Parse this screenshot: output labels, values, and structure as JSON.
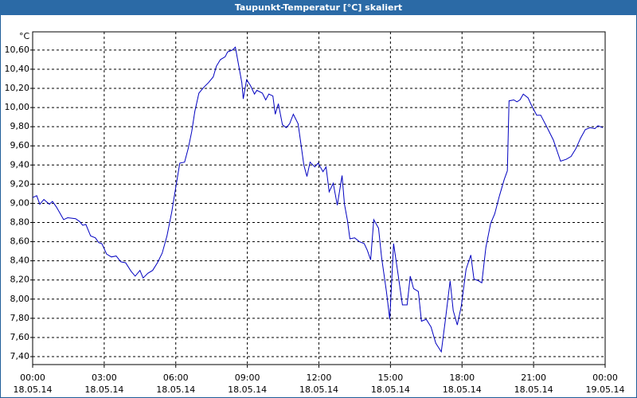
{
  "chart_data": {
    "type": "line",
    "title": "Taupunkt-Temperatur [°C] skaliert",
    "ylabel": "°C",
    "color": "#0000c0",
    "grid": true,
    "xlim": [
      0,
      24
    ],
    "ylim": [
      7.317,
      10.79
    ],
    "xticks": [
      {
        "value": 0,
        "label": "00:00"
      },
      {
        "value": 3,
        "label": "03:00"
      },
      {
        "value": 6,
        "label": "06:00"
      },
      {
        "value": 9,
        "label": "09:00"
      },
      {
        "value": 12,
        "label": "12:00"
      },
      {
        "value": 15,
        "label": "15:00"
      },
      {
        "value": 18,
        "label": "18:00"
      },
      {
        "value": 21,
        "label": "21:00"
      },
      {
        "value": 24,
        "label": "00:00"
      }
    ],
    "xtick_dates": [
      "18.05.14",
      "18.05.14",
      "18.05.14",
      "18.05.14",
      "18.05.14",
      "18.05.14",
      "18.05.14",
      "18.05.14",
      "19.05.14"
    ],
    "yticks": [
      {
        "value": 7.4,
        "label": "7,40"
      },
      {
        "value": 7.6,
        "label": "7,60"
      },
      {
        "value": 7.8,
        "label": "7,80"
      },
      {
        "value": 8.0,
        "label": "8,00"
      },
      {
        "value": 8.2,
        "label": "8,20"
      },
      {
        "value": 8.4,
        "label": "8,40"
      },
      {
        "value": 8.6,
        "label": "8,60"
      },
      {
        "value": 8.8,
        "label": "8,80"
      },
      {
        "value": 9.0,
        "label": "9,00"
      },
      {
        "value": 9.2,
        "label": "9,20"
      },
      {
        "value": 9.4,
        "label": "9,40"
      },
      {
        "value": 9.6,
        "label": "9,60"
      },
      {
        "value": 9.8,
        "label": "9,80"
      },
      {
        "value": 10.0,
        "label": "10,00"
      },
      {
        "value": 10.2,
        "label": "10,20"
      },
      {
        "value": 10.4,
        "label": "10,40"
      },
      {
        "value": 10.6,
        "label": "10,60"
      }
    ],
    "x": [
      0,
      0.17,
      0.3,
      0.47,
      0.7,
      0.83,
      1.0,
      1.3,
      1.47,
      1.8,
      1.97,
      2.1,
      2.23,
      2.43,
      2.63,
      2.77,
      2.9,
      3.1,
      3.3,
      3.5,
      3.7,
      3.9,
      4.13,
      4.3,
      4.5,
      4.63,
      4.83,
      5.03,
      5.23,
      5.43,
      5.63,
      5.83,
      6.03,
      6.17,
      6.37,
      6.53,
      6.67,
      6.8,
      6.97,
      7.17,
      7.37,
      7.57,
      7.7,
      7.87,
      8.07,
      8.17,
      8.37,
      8.5,
      8.63,
      8.77,
      8.83,
      8.97,
      9.13,
      9.3,
      9.4,
      9.63,
      9.77,
      9.9,
      10.07,
      10.17,
      10.3,
      10.47,
      10.63,
      10.77,
      10.93,
      11.13,
      11.37,
      11.5,
      11.63,
      11.83,
      11.97,
      12.17,
      12.3,
      12.43,
      12.6,
      12.77,
      12.97,
      13.07,
      13.2,
      13.3,
      13.5,
      13.7,
      13.9,
      14.03,
      14.17,
      14.3,
      14.5,
      14.63,
      14.83,
      14.97,
      15.13,
      15.3,
      15.5,
      15.7,
      15.83,
      15.97,
      16.17,
      16.3,
      16.5,
      16.7,
      16.9,
      17.13,
      17.3,
      17.5,
      17.63,
      17.8,
      17.97,
      18.17,
      18.37,
      18.5,
      18.7,
      18.83,
      19.0,
      19.2,
      19.37,
      19.57,
      19.77,
      19.9,
      19.97,
      20.17,
      20.3,
      20.43,
      20.57,
      20.77,
      20.9,
      21.13,
      21.3,
      21.57,
      21.83,
      22.13,
      22.37,
      22.57,
      22.77,
      22.97,
      23.17,
      23.37,
      23.57,
      23.7,
      23.9
    ],
    "values": [
      9.06,
      9.08,
      8.99,
      9.04,
      8.99,
      9.02,
      8.96,
      8.83,
      8.85,
      8.84,
      8.81,
      8.77,
      8.78,
      8.66,
      8.64,
      8.59,
      8.58,
      8.47,
      8.44,
      8.45,
      8.39,
      8.38,
      8.29,
      8.24,
      8.3,
      8.22,
      8.27,
      8.3,
      8.38,
      8.48,
      8.66,
      8.91,
      9.21,
      9.42,
      9.43,
      9.58,
      9.75,
      9.96,
      10.15,
      10.21,
      10.26,
      10.32,
      10.43,
      10.5,
      10.53,
      10.58,
      10.6,
      10.63,
      10.45,
      10.26,
      10.09,
      10.29,
      10.23,
      10.14,
      10.18,
      10.15,
      10.08,
      10.14,
      10.12,
      9.93,
      10.04,
      9.82,
      9.79,
      9.83,
      9.93,
      9.83,
      9.4,
      9.28,
      9.43,
      9.38,
      9.42,
      9.33,
      9.38,
      9.12,
      9.21,
      8.98,
      9.29,
      8.99,
      8.82,
      8.63,
      8.64,
      8.6,
      8.58,
      8.51,
      8.41,
      8.83,
      8.74,
      8.43,
      8.08,
      7.79,
      8.58,
      8.29,
      7.94,
      7.94,
      8.24,
      8.11,
      8.08,
      7.77,
      7.79,
      7.71,
      7.54,
      7.45,
      7.78,
      8.19,
      7.88,
      7.73,
      7.93,
      8.31,
      8.46,
      8.21,
      8.19,
      8.17,
      8.54,
      8.79,
      8.89,
      9.08,
      9.25,
      9.34,
      10.07,
      10.08,
      10.06,
      10.08,
      10.14,
      10.1,
      10.03,
      9.92,
      9.92,
      9.79,
      9.66,
      9.44,
      9.46,
      9.49,
      9.57,
      9.68,
      9.77,
      9.79,
      9.78,
      9.81,
      9.79
    ]
  }
}
